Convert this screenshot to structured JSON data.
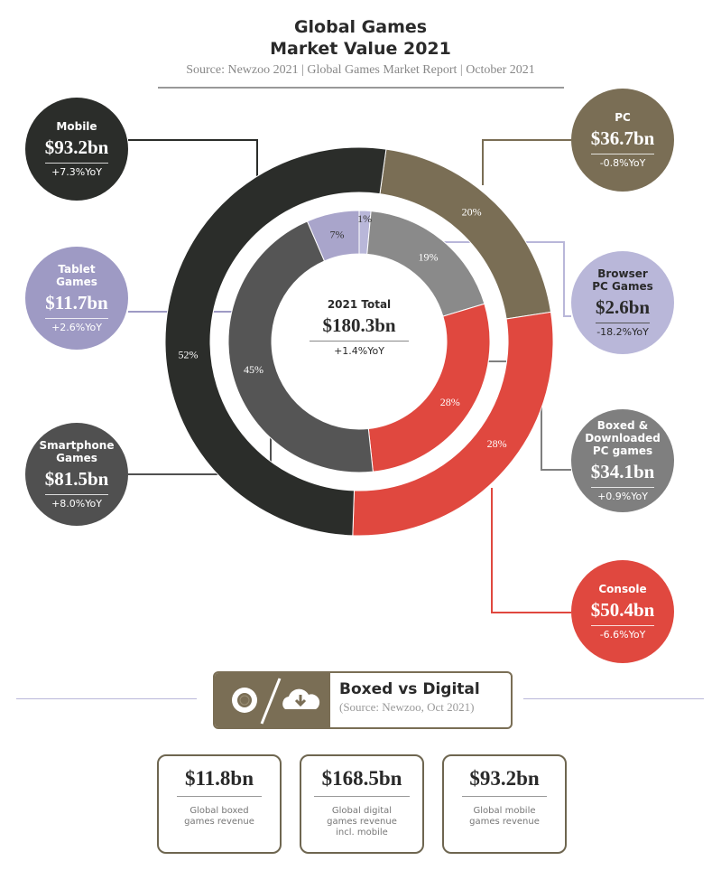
{
  "header": {
    "title_line1": "Global Games",
    "title_line2": "Market Value 2021",
    "source": "Source: Newzoo 2021 | Global Games Market Report | October 2021"
  },
  "center": {
    "label": "2021 Total",
    "value": "$180.3bn",
    "yoy": "+1.4%YoY"
  },
  "segments": {
    "mobile": {
      "name": "Mobile",
      "value": "$93.2bn",
      "yoy": "+7.3%YoY",
      "color": "#2b2d2a"
    },
    "tablet": {
      "name": "Tablet Games",
      "value": "$11.7bn",
      "yoy": "+2.6%YoY",
      "color": "#9e9ac4"
    },
    "smartphone": {
      "name": "Smartphone Games",
      "value": "$81.5bn",
      "yoy": "+8.0%YoY",
      "color": "#505050"
    },
    "pc": {
      "name": "PC",
      "value": "$36.7bn",
      "yoy": "-0.8%YoY",
      "color": "#7a6e55"
    },
    "browser": {
      "name": "Browser PC Games",
      "value": "$2.6bn",
      "yoy": "-18.2%YoY",
      "color": "#b9b7d9"
    },
    "boxed": {
      "name": "Boxed & Downloaded PC games",
      "value": "$34.1bn",
      "yoy": "+0.9%YoY",
      "color": "#7f7f7f"
    },
    "console": {
      "name": "Console",
      "value": "$50.4bn",
      "yoy": "-6.6%YoY",
      "color": "#e0483f"
    }
  },
  "chart_data": {
    "type": "pie",
    "title": "Global Games Market Value 2021",
    "total": 180.3,
    "rings": [
      {
        "name": "outer",
        "start_deg": 8,
        "slices": [
          {
            "label": "PC",
            "value": 36.7,
            "pct_label": "20%",
            "color": "#7a6e55"
          },
          {
            "label": "Console",
            "value": 50.4,
            "pct_label": "28%",
            "color": "#e0483f"
          },
          {
            "label": "Mobile",
            "value": 93.2,
            "pct_label": "52%",
            "color": "#2b2d2a"
          }
        ]
      },
      {
        "name": "inner",
        "start_deg": 0,
        "slices": [
          {
            "label": "Browser PC Games",
            "value": 2.6,
            "pct_label": "1%",
            "color": "#b9b7d9"
          },
          {
            "label": "Boxed & Downloaded PC games",
            "value": 34.1,
            "pct_label": "19%",
            "color": "#8a8a8a"
          },
          {
            "label": "Console",
            "value": 50.4,
            "pct_label": "28%",
            "color": "#e0483f"
          },
          {
            "label": "Smartphone Games",
            "value": 81.5,
            "pct_label": "45%",
            "color": "#555555"
          },
          {
            "label": "Tablet Games",
            "value": 11.7,
            "pct_label": "7%",
            "color": "#a9a5cb"
          }
        ]
      }
    ]
  },
  "boxed_vs_digital": {
    "title": "Boxed vs Digital",
    "source": "(Source: Newzoo, Oct 2021)",
    "cards": [
      {
        "value": "$11.8bn",
        "desc": "Global boxed games revenue"
      },
      {
        "value": "$168.5bn",
        "desc": "Global digital games  revenue incl. mobile"
      },
      {
        "value": "$93.2bn",
        "desc": "Global mobile games revenue"
      }
    ]
  }
}
